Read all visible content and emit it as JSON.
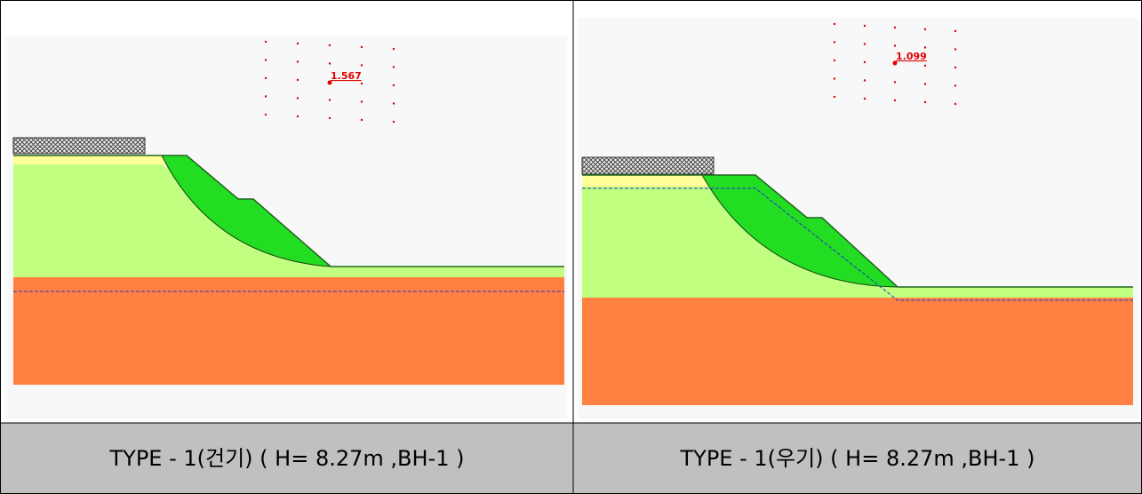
{
  "panels": [
    {
      "factor_of_safety": "1.567",
      "caption": "TYPE - 1(건기) ( H= 8.27m ,BH-1 )"
    },
    {
      "factor_of_safety": "1.099",
      "caption": "TYPE - 1(우기) ( H= 8.27m ,BH-1 )"
    }
  ]
}
